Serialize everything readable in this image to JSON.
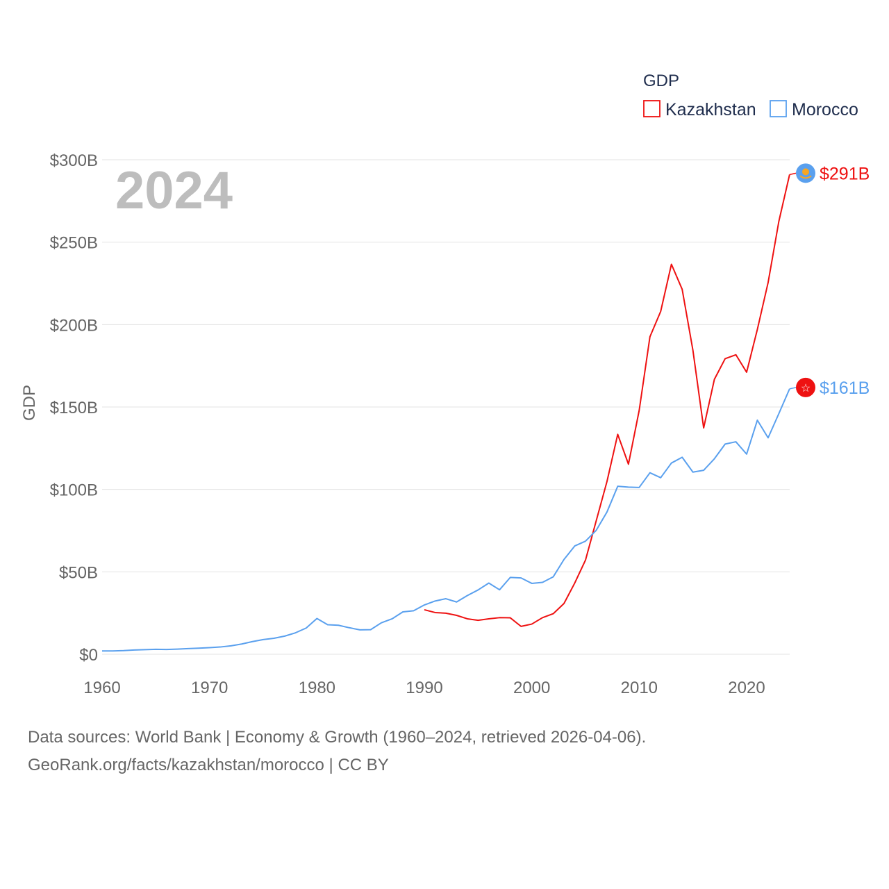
{
  "chart_data": {
    "type": "line",
    "title": "GDP",
    "ylabel": "GDP",
    "xlabel": "",
    "year_label": "2024",
    "ylim": [
      0,
      300
    ],
    "xlim": [
      1960,
      2024
    ],
    "y_ticks": [
      0,
      50,
      100,
      150,
      200,
      250,
      300
    ],
    "y_tick_labels": [
      "$0",
      "$50B",
      "$100B",
      "$150B",
      "$200B",
      "$250B",
      "$300B"
    ],
    "x_ticks": [
      1960,
      1970,
      1980,
      1990,
      2000,
      2010,
      2020
    ],
    "x_tick_labels": [
      "1960",
      "1970",
      "1980",
      "1990",
      "2000",
      "2010",
      "2020"
    ],
    "grid": "horizontal",
    "legend_placement": "top-right",
    "series": [
      {
        "name": "Kazakhstan",
        "color": "#ee1111",
        "end_label": "$291B",
        "flag_icon": "kazakhstan-flag-icon",
        "x_start": 1990,
        "values": [
          27.0,
          25.3,
          24.9,
          23.6,
          21.5,
          20.6,
          21.5,
          22.2,
          22.1,
          16.9,
          18.3,
          22.2,
          24.6,
          30.8,
          43.2,
          57.1,
          81.0,
          104.8,
          133.4,
          115.3,
          148.0,
          192.6,
          208.0,
          236.6,
          221.4,
          184.4,
          137.3,
          166.8,
          179.3,
          181.7,
          171.1,
          197.1,
          225.5,
          262.6,
          291.0
        ]
      },
      {
        "name": "Morocco",
        "color": "#5aa0ee",
        "end_label": "$161B",
        "flag_icon": "morocco-flag-icon",
        "x_start": 1960,
        "values": [
          2.0,
          2.0,
          2.2,
          2.6,
          2.8,
          3.0,
          2.9,
          3.1,
          3.4,
          3.7,
          4.0,
          4.4,
          5.1,
          6.2,
          7.7,
          8.9,
          9.7,
          11.0,
          13.0,
          15.9,
          21.7,
          17.9,
          17.6,
          16.1,
          14.8,
          14.9,
          19.1,
          21.5,
          25.7,
          26.4,
          29.9,
          32.3,
          33.7,
          31.7,
          35.6,
          39.0,
          43.2,
          39.1,
          46.6,
          46.3,
          43.0,
          43.6,
          47.0,
          57.5,
          65.7,
          68.6,
          75.2,
          86.3,
          101.9,
          101.4,
          101.2,
          110.1,
          107.1,
          116.0,
          119.5,
          110.5,
          111.6,
          118.6,
          127.5,
          128.9,
          121.4,
          142.0,
          131.3,
          146.0,
          161.0
        ]
      }
    ]
  },
  "footer": {
    "line1": "Data sources: World Bank | Economy & Growth (1960–2024, retrieved 2026-04-06).",
    "line2": "GeoRank.org/facts/kazakhstan/morocco | CC BY"
  }
}
